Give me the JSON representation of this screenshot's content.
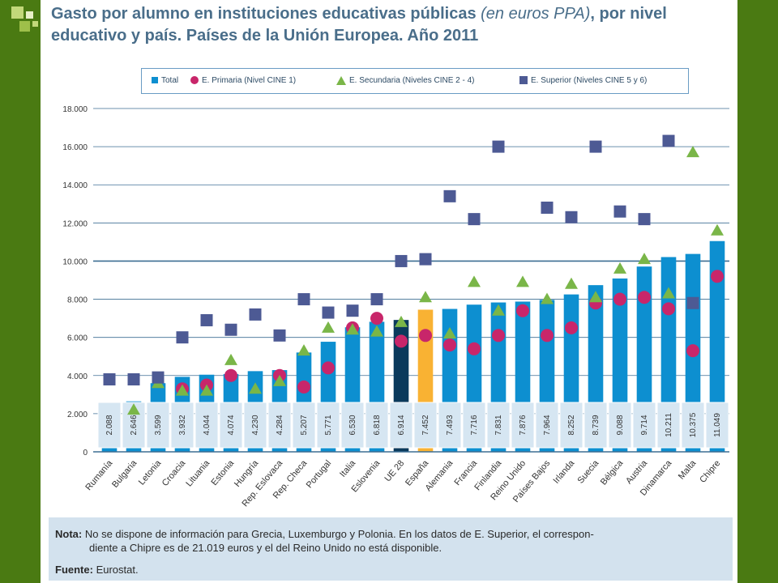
{
  "slide": {
    "title_main_1": "Gasto por alumno en instituciones educativas públicas ",
    "title_italic": "(en euros PPA)",
    "title_main_2": ", por nivel educativo y país. Países de la Unión Europea. Año 2011"
  },
  "legend": {
    "total": "Total",
    "primaria": "E. Primaria (Nivel CINE 1)",
    "secundaria": "E. Secundaria (Niveles CINE 2 - 4)",
    "superior": "E. Superior (Niveles CINE 5 y 6)"
  },
  "note": {
    "label": "Nota:",
    "text_1": "No se dispone de información para Grecia, Luxemburgo y Polonia. En los datos de E. Superior, el correspon-",
    "text_2": "diente a Chipre es de 21.019 euros y el del Reino Unido no está disponible.",
    "source_label": "Fuente:",
    "source": "Eurostat."
  },
  "colors": {
    "total": "#0d8fd0",
    "ue28": "#0b3a5c",
    "espana": "#f9b233",
    "primaria": "#c8266a",
    "secundaria": "#7ab648",
    "superior": "#4d5a94",
    "grid": "#3d6e93"
  },
  "chart_data": {
    "type": "bar",
    "categories": [
      "Rumanía",
      "Bulgaria",
      "Letonia",
      "Croacia",
      "Lituania",
      "Estonia",
      "Hungría",
      "Rep. Eslovaca",
      "Rep. Checa",
      "Portugal",
      "Italia",
      "Eslovenia",
      "UE 28",
      "España",
      "Alemania",
      "Francia",
      "Finlandia",
      "Reino Unido",
      "Países Bajos",
      "Irlanda",
      "Suecia",
      "Bélgica",
      "Austria",
      "Dinamarca",
      "Malta",
      "Chipre"
    ],
    "value_labels": [
      "2.088",
      "2.646",
      "3.599",
      "3.932",
      "4.044",
      "4.074",
      "4.230",
      "4.284",
      "5.207",
      "5.771",
      "6.530",
      "6.818",
      "6.914",
      "7.452",
      "7.493",
      "7.716",
      "7.831",
      "7.876",
      "7.964",
      "8.252",
      "8.739",
      "9.088",
      "9.714",
      "10.211",
      "10.375",
      "11.049"
    ],
    "y_tick_labels": [
      "0",
      "2.000",
      "4.000",
      "6.000",
      "8.000",
      "10.000",
      "12.000",
      "14.000",
      "16.000",
      "18.000"
    ],
    "ylim": [
      0,
      18000
    ],
    "series": [
      {
        "name": "Total",
        "type": "bar",
        "values": [
          2088,
          2646,
          3599,
          3932,
          4044,
          4074,
          4230,
          4284,
          5207,
          5771,
          6530,
          6818,
          6914,
          7452,
          7493,
          7716,
          7831,
          7876,
          7964,
          8252,
          8739,
          9088,
          9714,
          10211,
          10375,
          11049
        ]
      },
      {
        "name": "E. Primaria (Nivel CINE 1)",
        "type": "scatter",
        "marker": "circle",
        "values": [
          null,
          null,
          null,
          3300,
          3500,
          4000,
          null,
          4000,
          3400,
          4400,
          6500,
          7000,
          5800,
          6100,
          5600,
          5400,
          6100,
          7400,
          6100,
          6500,
          7800,
          8000,
          8100,
          7500,
          5300,
          9200
        ]
      },
      {
        "name": "E. Secundaria (Niveles CINE 2 - 4)",
        "type": "scatter",
        "marker": "triangle",
        "values": [
          null,
          2200,
          3600,
          3200,
          3200,
          4800,
          3300,
          3700,
          5300,
          6500,
          6400,
          6300,
          6800,
          8100,
          6200,
          8900,
          7400,
          8900,
          8000,
          8800,
          8100,
          9600,
          10100,
          8300,
          15700,
          11600
        ]
      },
      {
        "name": "E. Superior (Niveles CINE 5 y 6)",
        "type": "scatter",
        "marker": "square",
        "values": [
          3800,
          3800,
          3900,
          6000,
          6900,
          6400,
          7200,
          6100,
          8000,
          7300,
          7400,
          8000,
          10000,
          10100,
          13400,
          12200,
          16000,
          null,
          12800,
          12300,
          16000,
          12600,
          12200,
          16300,
          7800,
          null
        ]
      }
    ],
    "highlight": {
      "UE 28": "ue28",
      "España": "espana"
    }
  }
}
